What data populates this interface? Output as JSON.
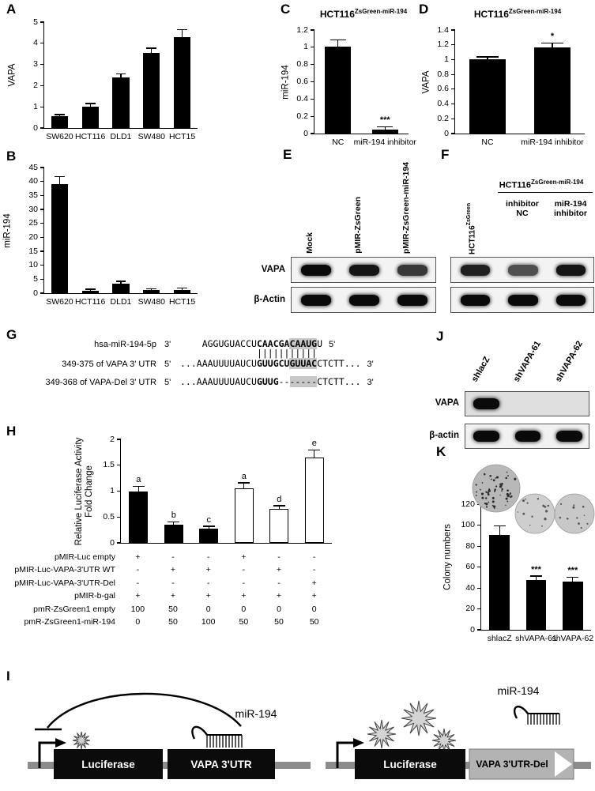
{
  "panels": {
    "A": {
      "letter": "A"
    },
    "B": {
      "letter": "B"
    },
    "C": {
      "letter": "C",
      "title_base": "HCT116",
      "title_sup": "ZsGreen-miR-194"
    },
    "D": {
      "letter": "D",
      "title_base": "HCT116",
      "title_sup": "ZsGreen-miR-194"
    },
    "E": {
      "letter": "E",
      "lanes": [
        "Mock",
        "pMIR-ZsGreen",
        "pMIR-ZsGreen-miR-194"
      ],
      "rows": [
        {
          "label": "VAPA",
          "bands": [
            1,
            0.95,
            0.8
          ]
        },
        {
          "label": "β-Actin",
          "bands": [
            1,
            1,
            1
          ]
        }
      ]
    },
    "F": {
      "letter": "F",
      "header_base": "HCT116",
      "header_sup": "ZsGreen-miR-194",
      "lane1_base": "HCT116",
      "lane1_sup": "ZsGreen",
      "lane_labels": [
        "inhibitor\nNC",
        "miR-194\ninhibitor"
      ],
      "rows": [
        {
          "label": "",
          "bands": [
            0.9,
            0.7,
            0.95
          ]
        },
        {
          "label": "",
          "bands": [
            1,
            1,
            1
          ]
        }
      ]
    },
    "G": {
      "letter": "G",
      "rows": [
        {
          "name": "hsa-miR-194-5p",
          "lp": "3'",
          "rp": "5'",
          "segs": [
            {
              "t": "    AGGUGUACCU"
            },
            {
              "t": "CAACGA",
              "b": 1
            },
            {
              "t": "CAAUG",
              "b": 1,
              "h": 1
            },
            {
              "t": "U"
            }
          ]
        },
        {
          "name": "",
          "lp": "",
          "rp": "",
          "segs": [
            {
              "t": "              "
            },
            {
              "t": "|||||||||||"
            }
          ]
        },
        {
          "name": "349-375 of VAPA 3' UTR",
          "lp": "5'",
          "rp": "3'",
          "segs": [
            {
              "t": "...AAAUUUUAUCU"
            },
            {
              "t": "GUUGCU",
              "b": 1
            },
            {
              "t": "GUUAC",
              "b": 1,
              "h": 1
            },
            {
              "t": "CTCTT..."
            }
          ]
        },
        {
          "name": "349-368 of VAPA-Del 3' UTR",
          "lp": "5'",
          "rp": "3'",
          "segs": [
            {
              "t": "...AAAUUUUAUCU"
            },
            {
              "t": "GUUG",
              "b": 1
            },
            {
              "t": "--"
            },
            {
              "t": "-----",
              "h": 1
            },
            {
              "t": "CTCTT..."
            }
          ]
        }
      ]
    },
    "H": {
      "letter": "H",
      "table": {
        "row_labels": [
          "pMIR-Luc empty",
          "pMIR-Luc-VAPA-3'UTR WT",
          "pMIR-Luc-VAPA-3'UTR-Del",
          "pMIR-b-gal",
          "pmR-ZsGreen1 empty",
          "pmR-ZsGreen1-miR-194"
        ],
        "values": [
          [
            "+",
            "-",
            "-",
            "+",
            "-",
            "-"
          ],
          [
            "-",
            "+",
            "+",
            "-",
            "+",
            "-"
          ],
          [
            "-",
            "-",
            "-",
            "-",
            "-",
            "+"
          ],
          [
            "+",
            "+",
            "+",
            "+",
            "+",
            "+"
          ],
          [
            "100",
            "50",
            "0",
            "0",
            "0",
            "0"
          ],
          [
            "0",
            "50",
            "100",
            "50",
            "50",
            "50"
          ]
        ]
      }
    },
    "I": {
      "letter": "I",
      "left": {
        "box1": "Luciferase",
        "box2": "VAPA 3'UTR",
        "mir": "miR-194"
      },
      "right": {
        "box1": "Luciferase",
        "box2": "VAPA 3'UTR-Del",
        "mir": "miR-194"
      }
    },
    "J": {
      "letter": "J",
      "lanes": [
        "shlacZ",
        "shVAPA-61",
        "shVAPA-62"
      ],
      "rows": [
        {
          "label": "VAPA",
          "bands": [
            1,
            0,
            0
          ]
        },
        {
          "label": "β-actin",
          "bands": [
            1,
            1,
            1
          ]
        }
      ]
    },
    "K": {
      "letter": "K"
    }
  },
  "chart_data": {
    "A": {
      "type": "bar",
      "ylabel": "VAPA",
      "ylim": [
        0,
        5
      ],
      "yticks": [
        0,
        1,
        2,
        3,
        4,
        5
      ],
      "categories": [
        "SW620",
        "HCT116",
        "DLD1",
        "SW480",
        "HCT15"
      ],
      "values": [
        0.55,
        1.0,
        2.4,
        3.55,
        4.3
      ],
      "errors": [
        0.06,
        0.13,
        0.12,
        0.2,
        0.32
      ]
    },
    "B": {
      "type": "bar",
      "ylabel": "miR-194",
      "ylim": [
        0,
        45
      ],
      "yticks": [
        0,
        5,
        10,
        15,
        20,
        25,
        30,
        35,
        40,
        45
      ],
      "categories": [
        "SW620",
        "HCT116",
        "DLD1",
        "SW480",
        "HCT15"
      ],
      "values": [
        39,
        0.9,
        3.5,
        1.0,
        1.2
      ],
      "errors": [
        2.5,
        0.3,
        0.6,
        0.3,
        0.4
      ]
    },
    "C": {
      "type": "bar",
      "title": "HCT116 ZsGreen-miR-194",
      "ylabel": "miR-194",
      "ylim": [
        0,
        1.2
      ],
      "yticks": [
        0,
        0.2,
        0.4,
        0.6,
        0.8,
        1,
        1.2
      ],
      "categories": [
        "NC",
        "miR-194 inhibitor"
      ],
      "values": [
        1.01,
        0.05
      ],
      "errors": [
        0.07,
        0.02
      ],
      "sig": [
        "",
        "***"
      ]
    },
    "D": {
      "type": "bar",
      "title": "HCT116 ZsGreen-miR-194",
      "ylabel": "VAPA",
      "ylim": [
        0,
        1.4
      ],
      "yticks": [
        0,
        0.2,
        0.4,
        0.6,
        0.8,
        1,
        1.2,
        1.4
      ],
      "categories": [
        "NC",
        "miR-194 inhibitor"
      ],
      "values": [
        1.0,
        1.16
      ],
      "errors": [
        0.03,
        0.06
      ],
      "sig": [
        "",
        "*"
      ]
    },
    "H": {
      "type": "bar",
      "ylabel": "Relative Luciferase Activity\nFold Change",
      "ylim": [
        0,
        2
      ],
      "yticks": [
        0,
        0.5,
        1,
        1.5,
        2
      ],
      "categories": [
        "",
        "",
        "",
        "",
        "",
        ""
      ],
      "values": [
        1.0,
        0.35,
        0.28,
        1.05,
        0.65,
        1.65
      ],
      "errors": [
        0.08,
        0.04,
        0.03,
        0.1,
        0.06,
        0.13
      ],
      "letters": [
        "a",
        "b",
        "c",
        "a",
        "d",
        "e"
      ],
      "fills": [
        "#000000",
        "#000000",
        "#000000",
        "#ffffff",
        "#ffffff",
        "#ffffff"
      ],
      "show_x": false
    },
    "K": {
      "type": "bar",
      "ylabel": "Colony numbers",
      "ylim": [
        0,
        140
      ],
      "yticks": [
        0,
        20,
        40,
        60,
        80,
        100,
        120
      ],
      "categories": [
        "shlacZ",
        "shVAPA-61",
        "shVAPA-62"
      ],
      "values": [
        91,
        48,
        46
      ],
      "errors": [
        8,
        3,
        4
      ],
      "sig": [
        "",
        "***",
        "***"
      ]
    }
  }
}
